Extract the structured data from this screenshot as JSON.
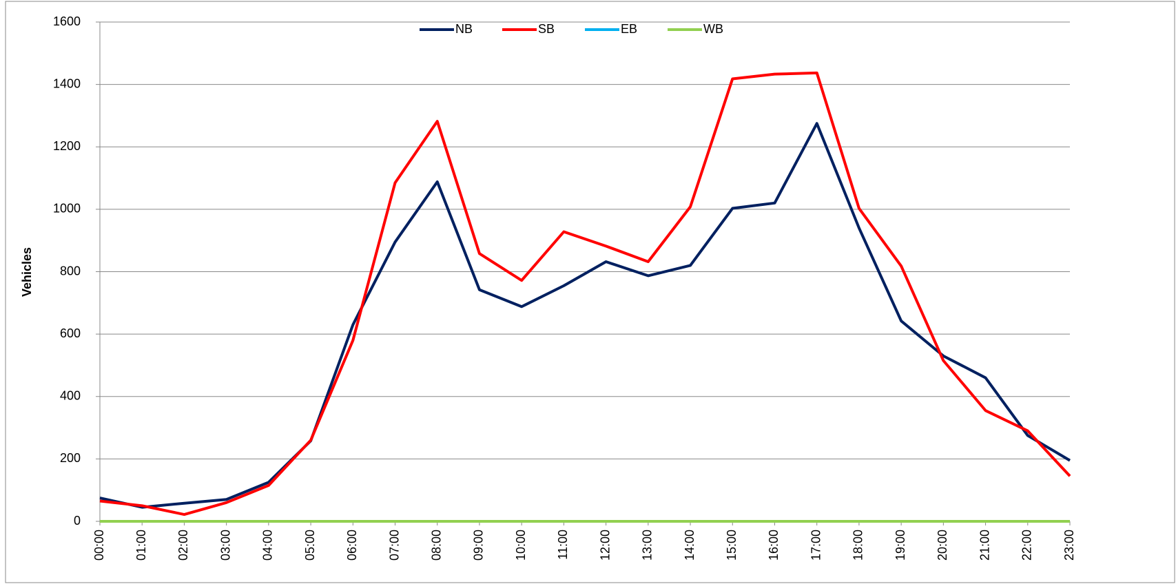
{
  "chart_data": {
    "type": "line",
    "categories": [
      "00:00",
      "01:00",
      "02:00",
      "03:00",
      "04:00",
      "05:00",
      "06:00",
      "07:00",
      "08:00",
      "09:00",
      "10:00",
      "11:00",
      "12:00",
      "13:00",
      "14:00",
      "15:00",
      "16:00",
      "17:00",
      "18:00",
      "19:00",
      "20:00",
      "21:00",
      "22:00",
      "23:00"
    ],
    "series": [
      {
        "name": "NB",
        "color": "#002060",
        "values": [
          75,
          45,
          58,
          70,
          125,
          258,
          630,
          895,
          1088,
          742,
          688,
          755,
          832,
          787,
          820,
          1003,
          1020,
          1275,
          940,
          642,
          530,
          460,
          275,
          195
        ]
      },
      {
        "name": "SB",
        "color": "#ff0000",
        "values": [
          65,
          50,
          22,
          60,
          115,
          260,
          580,
          1085,
          1282,
          858,
          772,
          928,
          882,
          832,
          1008,
          1418,
          1433,
          1437,
          1003,
          818,
          515,
          355,
          290,
          145
        ]
      },
      {
        "name": "EB",
        "color": "#00b0f0",
        "values": [
          0,
          0,
          0,
          0,
          0,
          0,
          0,
          0,
          0,
          0,
          0,
          0,
          0,
          0,
          0,
          0,
          0,
          0,
          0,
          0,
          0,
          0,
          0,
          0
        ]
      },
      {
        "name": "WB",
        "color": "#92d050",
        "values": [
          0,
          0,
          0,
          0,
          0,
          0,
          0,
          0,
          0,
          0,
          0,
          0,
          0,
          0,
          0,
          0,
          0,
          0,
          0,
          0,
          0,
          0,
          0,
          0
        ]
      }
    ],
    "y_label": "Vehicles",
    "ylim": [
      0,
      1600
    ],
    "yticks": [
      0,
      200,
      400,
      600,
      800,
      1000,
      1200,
      1400,
      1600
    ],
    "grid": true,
    "legend": "top"
  }
}
